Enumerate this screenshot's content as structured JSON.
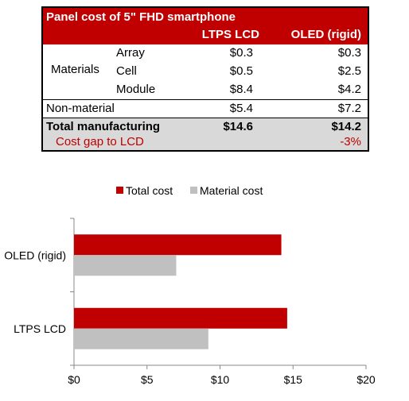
{
  "table": {
    "title": "Panel cost of 5\" FHD smartphone",
    "col_headers": [
      "LTPS LCD",
      "OLED (rigid)"
    ],
    "materials_label": "Materials",
    "materials_rows": [
      {
        "label": "Array",
        "ltps": "$0.3",
        "oled": "$0.3"
      },
      {
        "label": "Cell",
        "ltps": "$0.5",
        "oled": "$2.5"
      },
      {
        "label": "Module",
        "ltps": "$8.4",
        "oled": "$4.2"
      }
    ],
    "non_material": {
      "label": "Non-material",
      "ltps": "$5.4",
      "oled": "$7.2"
    },
    "total": {
      "label": "Total manufacturing",
      "ltps": "$14.6",
      "oled": "$14.2"
    },
    "gap": {
      "label": "Cost gap to LCD",
      "oled": "-3%"
    }
  },
  "chart_data": {
    "type": "bar",
    "orientation": "horizontal",
    "categories": [
      "OLED (rigid)",
      "LTPS LCD"
    ],
    "series": [
      {
        "name": "Total cost",
        "color": "#c00000",
        "values": [
          14.2,
          14.6
        ]
      },
      {
        "name": "Material cost",
        "color": "#c0c0c0",
        "values": [
          7.0,
          9.2
        ]
      }
    ],
    "xlim": [
      0,
      20
    ],
    "xticks": [
      0,
      5,
      10,
      15,
      20
    ],
    "xtick_labels": [
      "$0",
      "$5",
      "$10",
      "$15",
      "$20"
    ],
    "legend_position": "top",
    "grid": false
  }
}
